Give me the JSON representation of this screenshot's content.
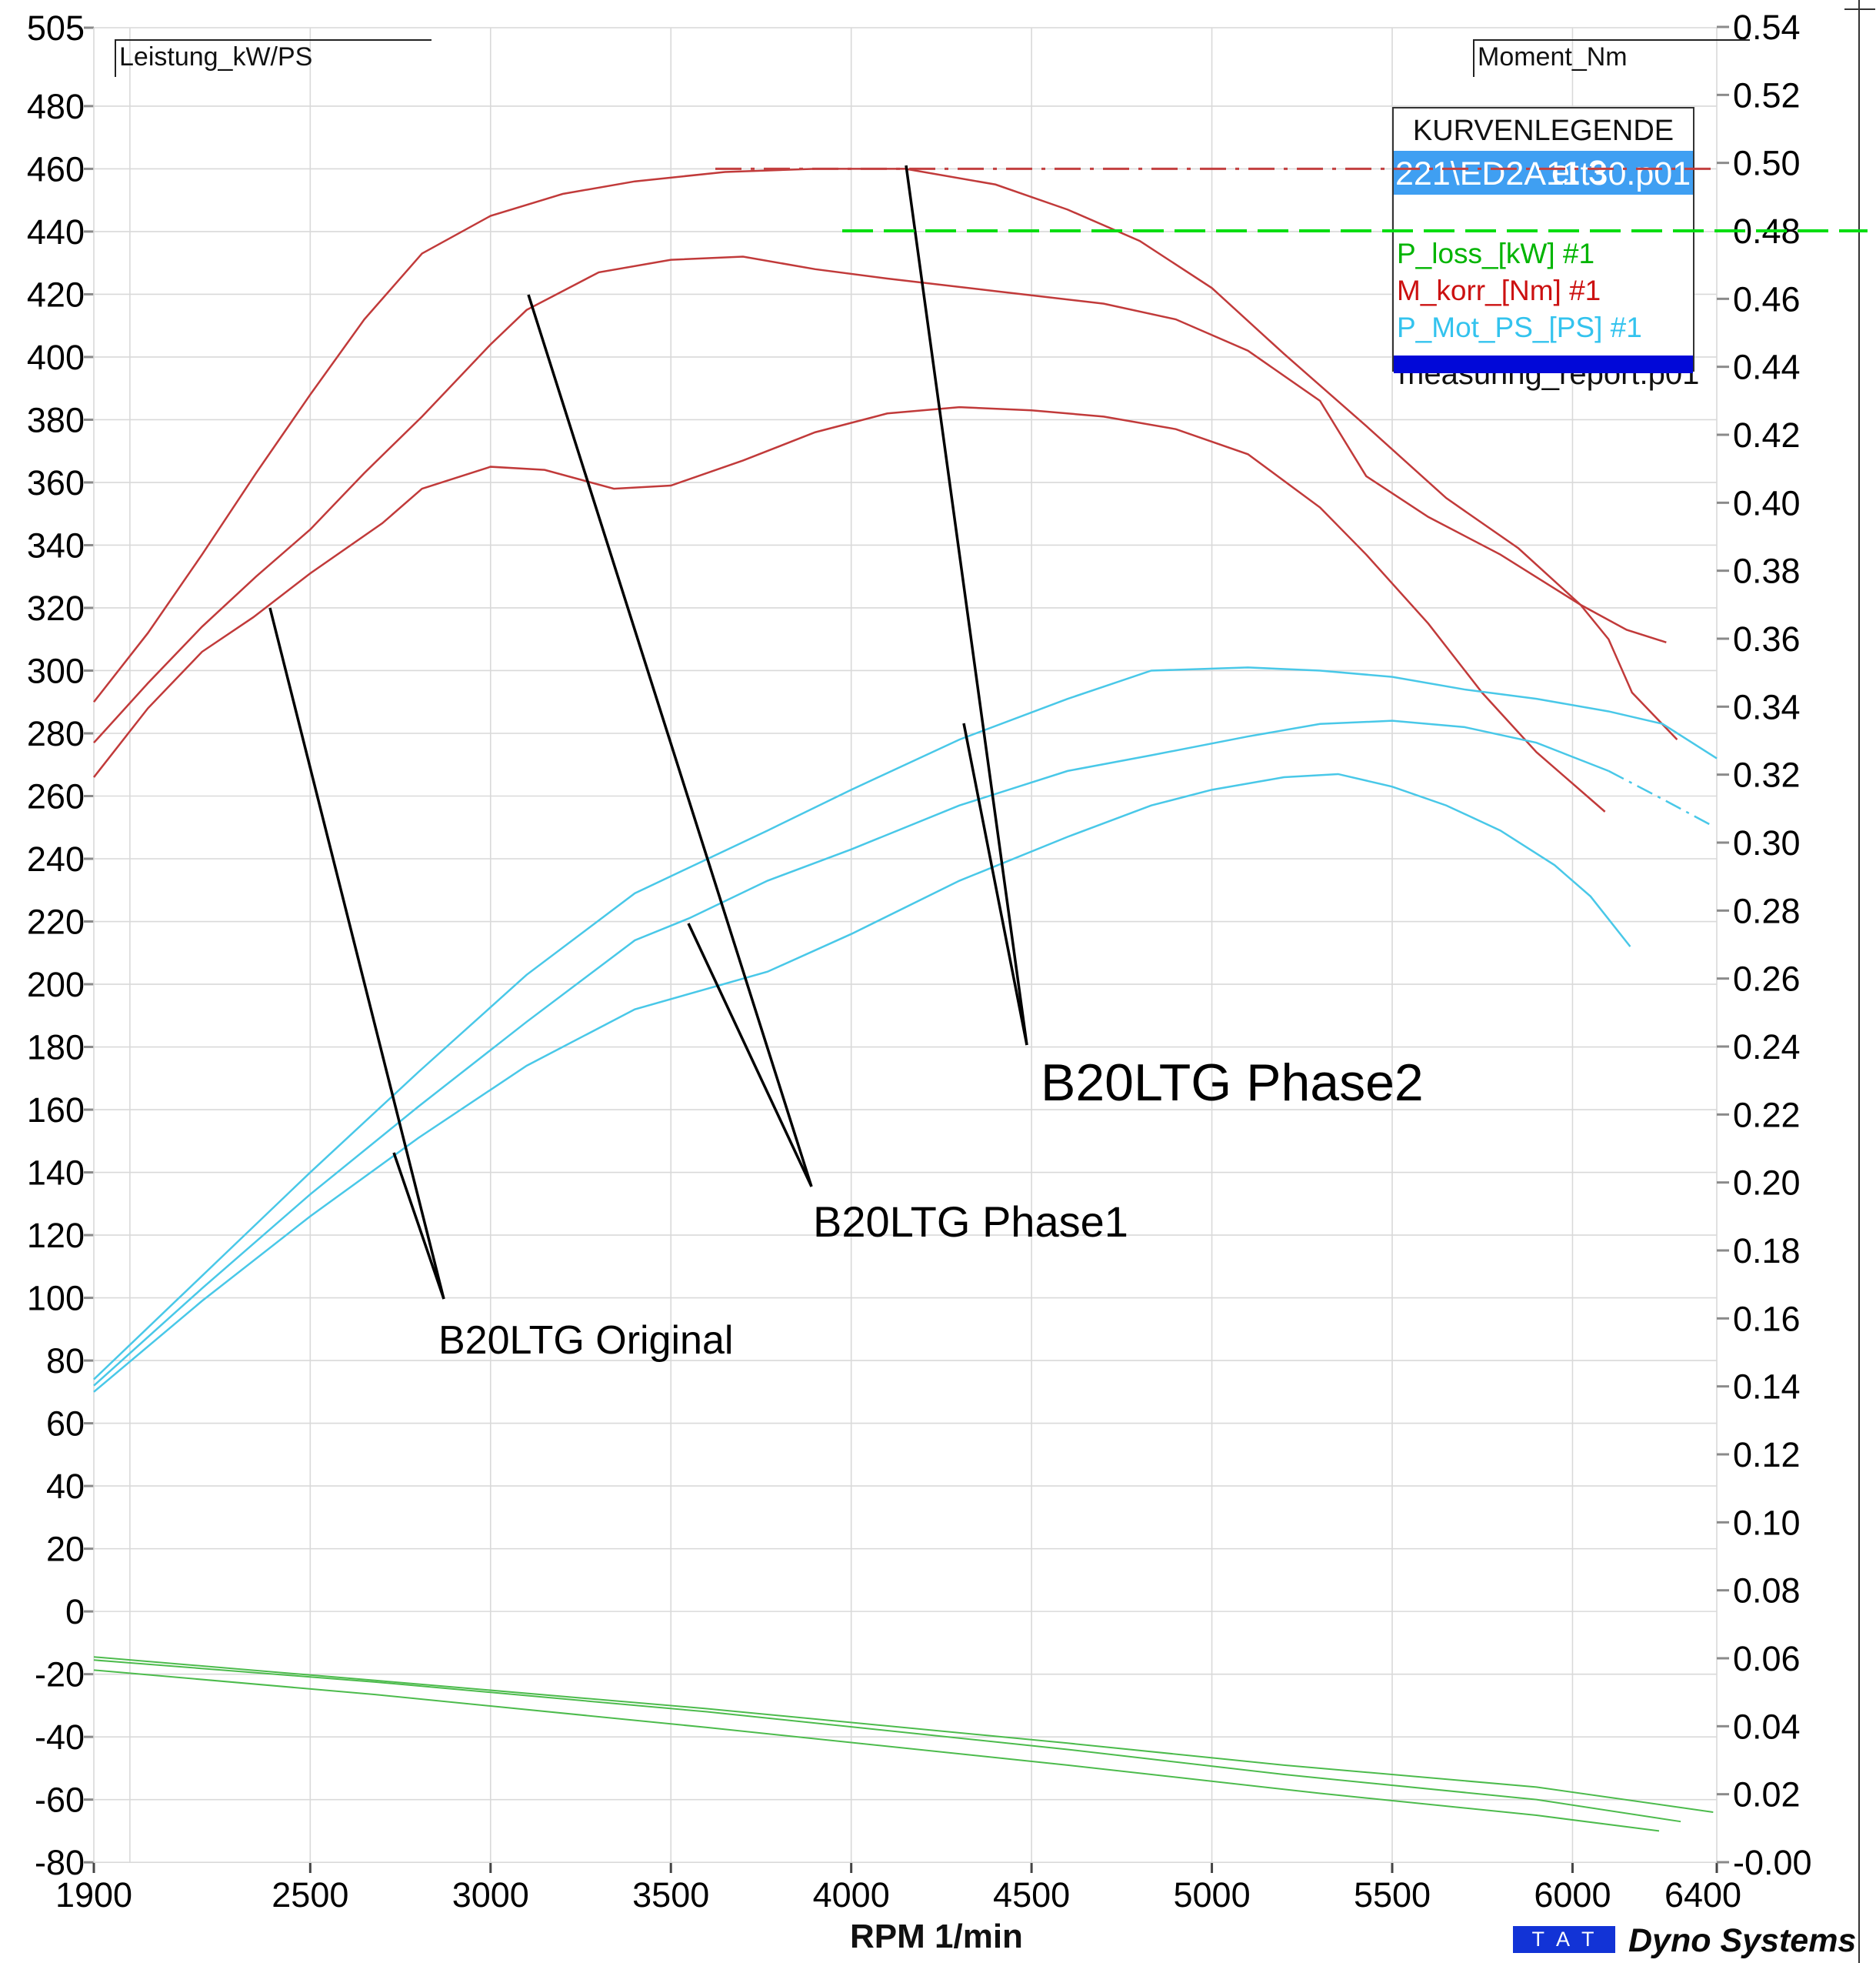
{
  "axes": {
    "left": {
      "title": "Leistung_kW/PS",
      "ticks": [
        505,
        480,
        460,
        440,
        420,
        400,
        380,
        360,
        340,
        320,
        300,
        280,
        260,
        240,
        220,
        200,
        180,
        160,
        140,
        120,
        100,
        80,
        60,
        40,
        20,
        0,
        -20,
        -40,
        -60,
        -80
      ]
    },
    "right": {
      "title": "Moment_Nm",
      "ticks": [
        "0.54",
        "0.52",
        "0.50",
        "0.48",
        "0.46",
        "0.44",
        "0.42",
        "0.40",
        "0.38",
        "0.36",
        "0.34",
        "0.32",
        "0.30",
        "0.28",
        "0.26",
        "0.24",
        "0.22",
        "0.20",
        "0.18",
        "0.16",
        "0.14",
        "0.12",
        "0.10",
        "0.08",
        "0.06",
        "0.04",
        "0.02",
        "-0.00"
      ]
    },
    "x": {
      "title": "RPM  1/min",
      "ticks": [
        1900,
        2500,
        3000,
        3500,
        4000,
        4500,
        5000,
        5500,
        6000,
        6400
      ]
    }
  },
  "legend": {
    "title": "KURVENLEGENDE",
    "file_selected": "221\\ED2A11t30.p01",
    "file_overlay": "et 3",
    "items": [
      {
        "label": "P_loss_[kW] #1",
        "color": "#00B400"
      },
      {
        "label": "M_korr_[Nm] #1",
        "color": "#CC1111"
      },
      {
        "label": "P_Mot_PS_[PS] #1",
        "color": "#33C3EE"
      }
    ],
    "file_bottom": "measuring_report.p01"
  },
  "annotations": {
    "original": {
      "label": "B20LTG Original"
    },
    "phase1": {
      "label": "B20LTG Phase1"
    },
    "phase2": {
      "label": "B20LTG Phase2"
    }
  },
  "footer": {
    "tat": "TAT",
    "brand": "Dyno Systems"
  },
  "colors": {
    "red": "#C13A3A",
    "cyan": "#49C8E8",
    "green": "#4CBB4C",
    "marker_green": "#00DD11",
    "marker_red": "#C34040",
    "grid": "#D9D9D9"
  },
  "chart_data": {
    "type": "line",
    "xlabel": "RPM  1/min",
    "ylabel_left": "Leistung_kW/PS",
    "ylabel_right": "Moment_Nm",
    "xlim": [
      1900,
      6400
    ],
    "ylim_left": [
      -80,
      505
    ],
    "ylim_right": [
      -0.0,
      0.54
    ],
    "series": [
      {
        "name": "M_korr_Nm_phase2",
        "color": "#C13A3A",
        "width": 2.5,
        "points": [
          [
            1900,
            290
          ],
          [
            2050,
            312
          ],
          [
            2200,
            337
          ],
          [
            2350,
            363
          ],
          [
            2500,
            388
          ],
          [
            2650,
            412
          ],
          [
            2810,
            433
          ],
          [
            3000,
            445
          ],
          [
            3200,
            452
          ],
          [
            3400,
            456
          ],
          [
            3650,
            459
          ],
          [
            3900,
            460
          ],
          [
            4150,
            460
          ],
          [
            4400,
            455
          ],
          [
            4600,
            447
          ],
          [
            4800,
            437
          ],
          [
            5000,
            422
          ],
          [
            5200,
            401
          ],
          [
            5428,
            378
          ],
          [
            5650,
            355
          ],
          [
            5850,
            339
          ],
          [
            6022,
            321
          ],
          [
            6100,
            310
          ],
          [
            6165,
            293
          ],
          [
            6290,
            278
          ]
        ]
      },
      {
        "name": "M_korr_Nm_phase1",
        "color": "#C13A3A",
        "width": 2.5,
        "points": [
          [
            1900,
            277
          ],
          [
            2050,
            296
          ],
          [
            2200,
            314
          ],
          [
            2350,
            330
          ],
          [
            2500,
            345
          ],
          [
            2650,
            363
          ],
          [
            2810,
            381
          ],
          [
            3000,
            404
          ],
          [
            3100,
            415
          ],
          [
            3300,
            427
          ],
          [
            3500,
            431
          ],
          [
            3700,
            432
          ],
          [
            3900,
            428
          ],
          [
            4100,
            425
          ],
          [
            4400,
            421
          ],
          [
            4700,
            417
          ],
          [
            4900,
            412
          ],
          [
            5100,
            402
          ],
          [
            5300,
            386
          ],
          [
            5428,
            362
          ],
          [
            5600,
            349
          ],
          [
            5800,
            337
          ],
          [
            6022,
            321
          ],
          [
            6150,
            313
          ],
          [
            6260,
            309
          ]
        ]
      },
      {
        "name": "M_korr_Nm_original",
        "color": "#C13A3A",
        "width": 2.5,
        "points": [
          [
            1900,
            266
          ],
          [
            2050,
            288
          ],
          [
            2200,
            306
          ],
          [
            2342,
            317
          ],
          [
            2500,
            331
          ],
          [
            2700,
            347
          ],
          [
            2810,
            358
          ],
          [
            3000,
            365
          ],
          [
            3150,
            364
          ],
          [
            3342,
            358
          ],
          [
            3500,
            359
          ],
          [
            3700,
            367
          ],
          [
            3900,
            376
          ],
          [
            4100,
            382
          ],
          [
            4300,
            384
          ],
          [
            4500,
            383
          ],
          [
            4700,
            381
          ],
          [
            4900,
            377
          ],
          [
            5100,
            369
          ],
          [
            5300,
            352
          ],
          [
            5428,
            337
          ],
          [
            5600,
            315
          ],
          [
            5749,
            293
          ],
          [
            5900,
            274
          ],
          [
            6000,
            264
          ],
          [
            6090,
            255
          ]
        ]
      },
      {
        "name": "P_Mot_PS_phase2",
        "color": "#49C8E8",
        "width": 2.5,
        "points": [
          [
            1900,
            74
          ],
          [
            2200,
            107
          ],
          [
            2500,
            140
          ],
          [
            2800,
            172
          ],
          [
            3100,
            203
          ],
          [
            3400,
            229
          ],
          [
            3768,
            249
          ],
          [
            4000,
            262
          ],
          [
            4300,
            278
          ],
          [
            4600,
            291
          ],
          [
            4832,
            300
          ],
          [
            5100,
            301
          ],
          [
            5300,
            300
          ],
          [
            5500,
            298
          ],
          [
            5700,
            294
          ],
          [
            5900,
            291
          ],
          [
            6100,
            287
          ],
          [
            6250,
            283
          ],
          [
            6400,
            272
          ]
        ]
      },
      {
        "name": "P_Mot_PS_phase1",
        "color": "#49C8E8",
        "width": 2.5,
        "dash_from": 6100,
        "points": [
          [
            1900,
            72
          ],
          [
            2200,
            103
          ],
          [
            2500,
            133
          ],
          [
            2800,
            161
          ],
          [
            3100,
            188
          ],
          [
            3400,
            214
          ],
          [
            3550,
            221
          ],
          [
            3768,
            233
          ],
          [
            4000,
            243
          ],
          [
            4300,
            257
          ],
          [
            4600,
            268
          ],
          [
            4832,
            273
          ],
          [
            5100,
            279
          ],
          [
            5300,
            283
          ],
          [
            5500,
            284
          ],
          [
            5700,
            282
          ],
          [
            5900,
            277
          ],
          [
            6100,
            268
          ],
          [
            6250,
            259
          ],
          [
            6380,
            251
          ]
        ]
      },
      {
        "name": "P_Mot_PS_original",
        "color": "#49C8E8",
        "width": 2.5,
        "points": [
          [
            1900,
            70
          ],
          [
            2200,
            99
          ],
          [
            2500,
            126
          ],
          [
            2800,
            151
          ],
          [
            3100,
            174
          ],
          [
            3400,
            192
          ],
          [
            3768,
            204
          ],
          [
            4000,
            216
          ],
          [
            4300,
            233
          ],
          [
            4600,
            247
          ],
          [
            4832,
            257
          ],
          [
            5000,
            262
          ],
          [
            5200,
            266
          ],
          [
            5350,
            267
          ],
          [
            5500,
            263
          ],
          [
            5650,
            257
          ],
          [
            5800,
            249
          ],
          [
            5950,
            238
          ],
          [
            6050,
            228
          ],
          [
            6160,
            212
          ]
        ]
      },
      {
        "name": "P_loss_kW_1",
        "color": "#4CBB4C",
        "width": 2,
        "points": [
          [
            1900,
            -14.5
          ],
          [
            2680,
            -22
          ],
          [
            3600,
            -31
          ],
          [
            4600,
            -42
          ],
          [
            5200,
            -49
          ],
          [
            5900,
            -56
          ],
          [
            6390,
            -64
          ]
        ]
      },
      {
        "name": "P_loss_kW_2",
        "color": "#4CBB4C",
        "width": 2,
        "points": [
          [
            1900,
            -15.5
          ],
          [
            2680,
            -22.5
          ],
          [
            3600,
            -32
          ],
          [
            4600,
            -44
          ],
          [
            5200,
            -52
          ],
          [
            5900,
            -60
          ],
          [
            6300,
            -67
          ]
        ]
      },
      {
        "name": "P_loss_kW_3",
        "color": "#4CBB4C",
        "width": 2,
        "points": [
          [
            1900,
            -18.7
          ],
          [
            2680,
            -26.5
          ],
          [
            3600,
            -37
          ],
          [
            4600,
            -49
          ],
          [
            5300,
            -58
          ],
          [
            5900,
            -65
          ],
          [
            6240,
            -70
          ]
        ]
      }
    ],
    "markers": [
      {
        "name": "green-cursor",
        "axis": "right",
        "value": 0.48,
        "x1": 1095,
        "x2": 2428,
        "color": "#00DD11",
        "dash": "40 14",
        "width": 4
      },
      {
        "name": "red-peak",
        "axis": "left",
        "value": 460,
        "x1": 930,
        "x2": 2232,
        "color": "#C34040",
        "dash": "34 12 5 12",
        "width": 3
      }
    ],
    "pointer_lines": [
      {
        "name": "original-a",
        "pts": [
          [
            351,
            790
          ],
          [
            577,
            1688
          ]
        ]
      },
      {
        "name": "original-b",
        "pts": [
          [
            512,
            1498
          ],
          [
            577,
            1688
          ]
        ]
      },
      {
        "name": "phase1-a",
        "pts": [
          [
            687,
            383
          ],
          [
            1055,
            1542
          ]
        ]
      },
      {
        "name": "phase1-b",
        "pts": [
          [
            895,
            1200
          ],
          [
            1055,
            1542
          ]
        ]
      },
      {
        "name": "phase2-a",
        "pts": [
          [
            1178,
            215
          ],
          [
            1335,
            1358
          ]
        ]
      },
      {
        "name": "phase2-b",
        "pts": [
          [
            1253,
            940
          ],
          [
            1335,
            1358
          ]
        ]
      }
    ]
  }
}
